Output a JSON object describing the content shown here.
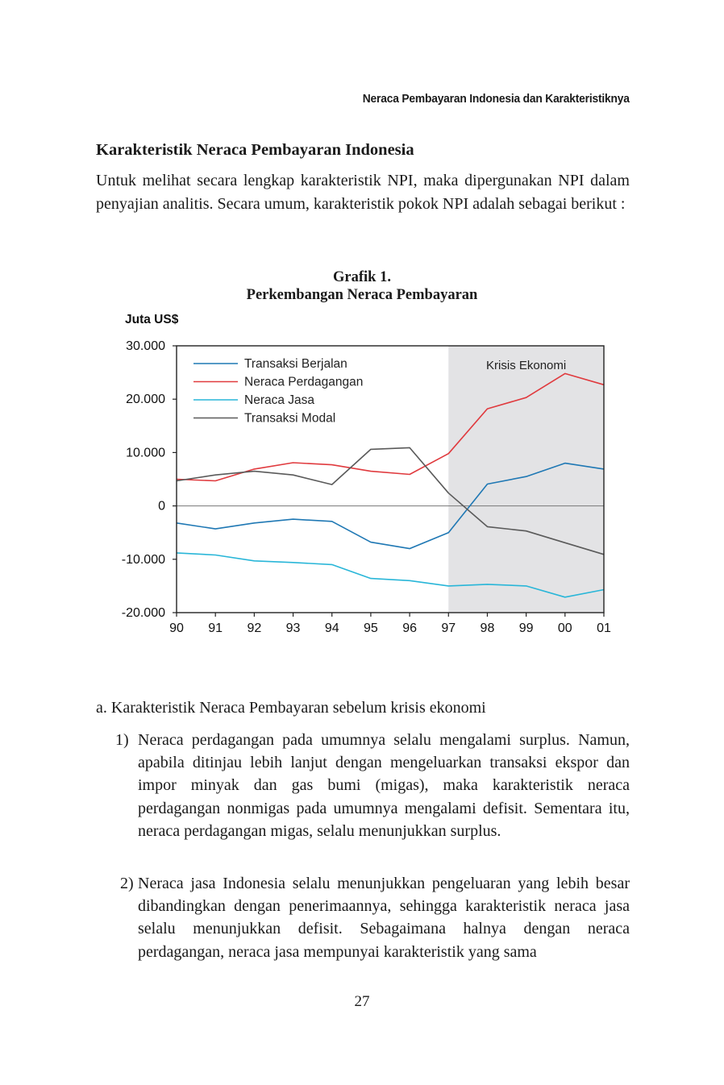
{
  "header": {
    "running_title": "Neraca Pembayaran Indonesia dan Karakteristiknya"
  },
  "section": {
    "title": "Karakteristik Neraca Pembayaran Indonesia",
    "intro": "Untuk melihat secara lengkap karakteristik NPI, maka dipergunakan NPI dalam penyajian analitis. Secara umum, karakteristik pokok NPI adalah sebagai berikut :"
  },
  "chart_data": {
    "type": "line",
    "title": "Grafik 1.",
    "subtitle": "Perkembangan Neraca Pembayaran",
    "ylabel": "Juta US$",
    "xlabel": "",
    "categories": [
      "90",
      "91",
      "92",
      "93",
      "94",
      "95",
      "96",
      "97",
      "98",
      "99",
      "00",
      "01"
    ],
    "y_ticks": [
      30000,
      20000,
      10000,
      0,
      -10000,
      -20000
    ],
    "y_tick_labels": [
      "30.000",
      "20.000",
      "10.000",
      "0",
      "-10.000",
      "-20.000"
    ],
    "ylim": [
      -20000,
      30000
    ],
    "shaded_region": {
      "label": "Krisis Ekonomi",
      "from": "97",
      "to": "01",
      "color": "#e3e3e5"
    },
    "legend_position": "top-left",
    "series": [
      {
        "name": "Transaksi Berjalan",
        "color": "#1f78b4",
        "values": [
          -3200,
          -4300,
          -3200,
          -2500,
          -2900,
          -6800,
          -8000,
          -5000,
          4100,
          5500,
          8000,
          6900
        ]
      },
      {
        "name": "Neraca Perdagangan",
        "color": "#e03a3e",
        "values": [
          5000,
          4700,
          6900,
          8100,
          7700,
          6500,
          5900,
          9800,
          18200,
          20300,
          24800,
          22700
        ]
      },
      {
        "name": "Neraca Jasa",
        "color": "#29b6d8",
        "values": [
          -8800,
          -9200,
          -10300,
          -10600,
          -11000,
          -13600,
          -14000,
          -15000,
          -14700,
          -15000,
          -17100,
          -15700
        ]
      },
      {
        "name": "Transaksi Modal",
        "color": "#5a5a5a",
        "values": [
          4700,
          5800,
          6500,
          5800,
          4000,
          10600,
          10900,
          2400,
          -3900,
          -4700,
          -6900,
          -9100
        ]
      }
    ]
  },
  "list": {
    "heading": "a. Karakteristik Neraca Pembayaran sebelum krisis ekonomi",
    "items": [
      {
        "num": "1)",
        "text": "Neraca perdagangan pada umumnya selalu mengalami surplus. Namun, apabila ditinjau lebih lanjut dengan mengeluarkan transaksi ekspor dan impor minyak dan gas bumi (migas), maka karakteristik neraca perdagangan nonmigas pada umumnya mengalami  defisit. Sementara itu, neraca perdagangan migas, selalu menunjukkan surplus."
      },
      {
        "num": "2)",
        "text": "Neraca jasa Indonesia selalu menunjukkan pengeluaran yang lebih besar dibandingkan dengan penerimaannya, sehingga karakteristik neraca jasa selalu menunjukkan defisit. Sebagaimana halnya dengan neraca perdagangan, neraca jasa mempunyai karakteristik yang sama"
      }
    ]
  },
  "footer": {
    "page_number": "27"
  }
}
